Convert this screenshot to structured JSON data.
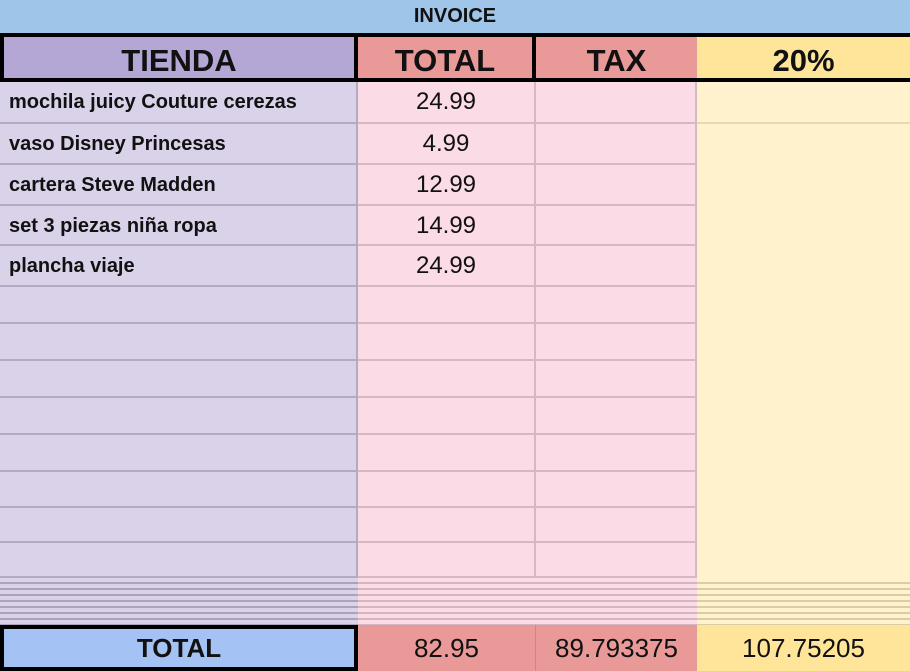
{
  "title": "INVOICE",
  "headers": {
    "tienda": "TIENDA",
    "total": "TOTAL",
    "tax": "TAX",
    "rate": "20%"
  },
  "rows": [
    {
      "item": "mochila juicy Couture cerezas",
      "total": "24.99"
    },
    {
      "item": "vaso Disney Princesas",
      "total": "4.99"
    },
    {
      "item": "cartera Steve Madden",
      "total": "12.99"
    },
    {
      "item": "set 3 piezas niña ropa",
      "total": "14.99"
    },
    {
      "item": "plancha viaje",
      "total": "24.99"
    }
  ],
  "totals": {
    "label": "TOTAL",
    "total": "82.95",
    "tax": "89.793375",
    "rate": "107.75205"
  },
  "colors": {
    "title_bg": "#9fc5e8",
    "tienda": "#b4a7d6",
    "total": "#ea9999",
    "rate": "#ffe599",
    "total_label": "#a4c2f4"
  }
}
